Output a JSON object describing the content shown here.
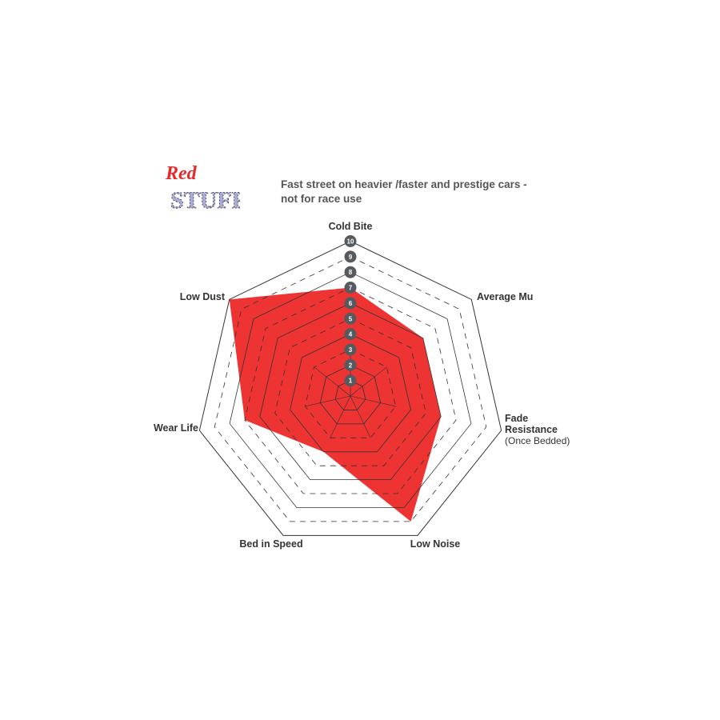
{
  "logo": {
    "line1": "Red",
    "line2": "STUFF"
  },
  "subtitle_lines": [
    "Fast street on heavier /faster and prestige cars -",
    "not for race use"
  ],
  "chart_data": {
    "type": "radar",
    "title": "",
    "axes": [
      "Cold Bite",
      "Average Mu",
      "Fade Resistance (Once Bedded)",
      "Low Noise",
      "Bed in Speed",
      "Wear Life",
      "Low Dust"
    ],
    "axis_labels": [
      {
        "lines": [
          "Cold Bite"
        ]
      },
      {
        "lines": [
          "Average Mu"
        ]
      },
      {
        "lines": [
          "Fade",
          "Resistance"
        ],
        "sub": "(Once Bedded)"
      },
      {
        "lines": [
          "Low Noise"
        ]
      },
      {
        "lines": [
          "Bed in Speed"
        ]
      },
      {
        "lines": [
          "Wear Life"
        ]
      },
      {
        "lines": [
          "Low Dust"
        ]
      }
    ],
    "values": [
      7,
      6,
      6,
      9,
      4,
      7,
      10
    ],
    "range": [
      0,
      10
    ],
    "ticks": [
      "1",
      "2",
      "3",
      "4",
      "5",
      "6",
      "7",
      "8",
      "9",
      "10"
    ],
    "fill_color": "#ee3333",
    "tick_badge_color": "#555a5e"
  }
}
